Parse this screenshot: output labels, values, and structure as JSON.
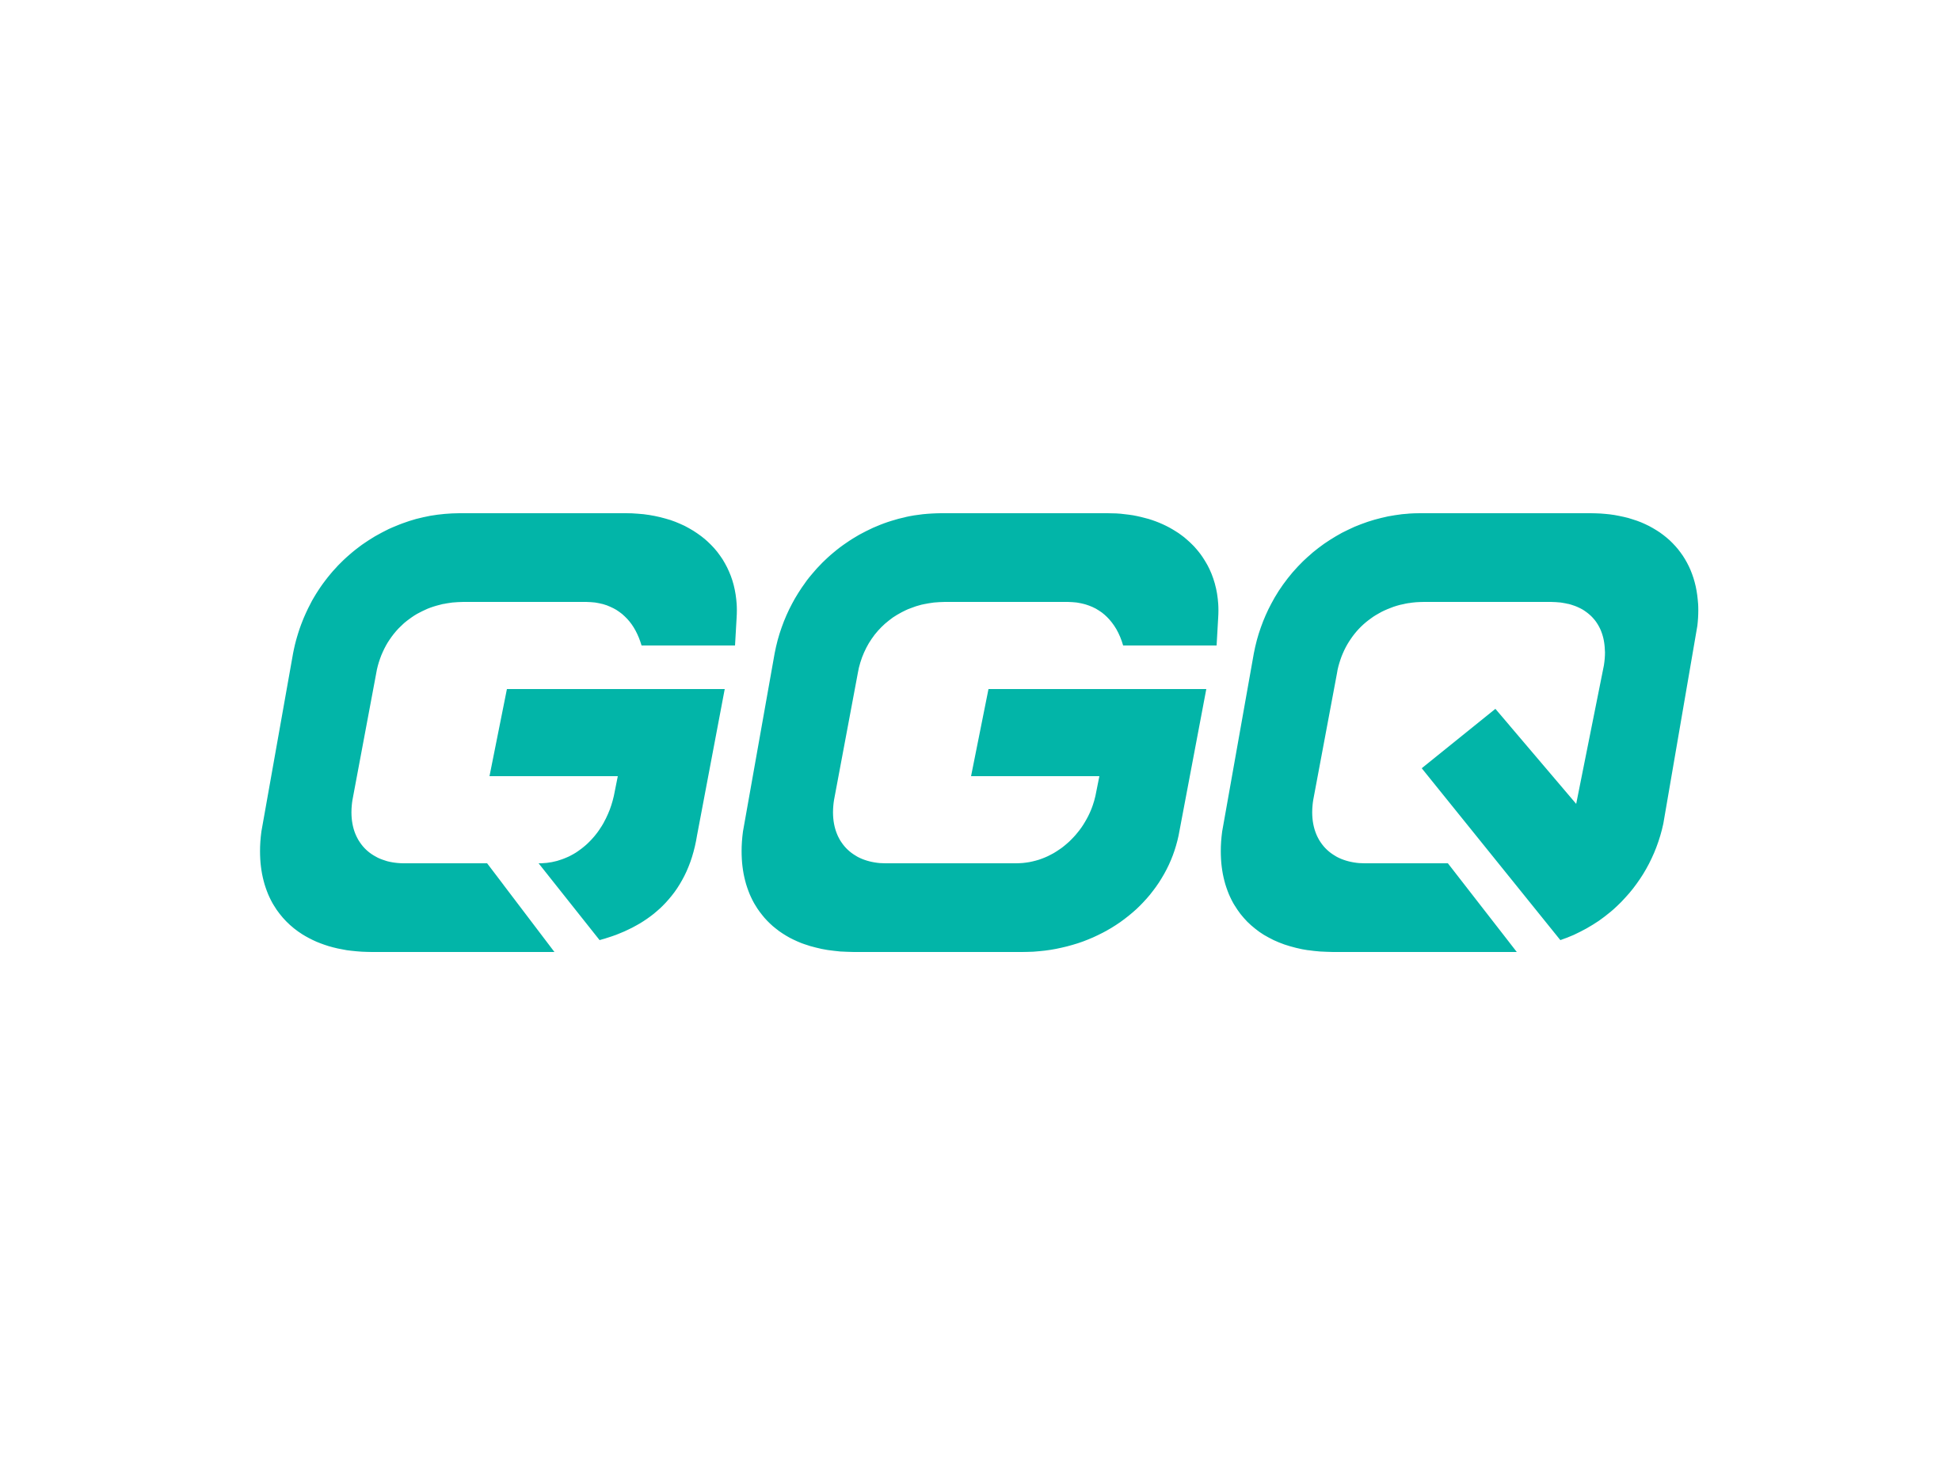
{
  "logo": {
    "text": "GGQ",
    "letters": [
      "G",
      "G",
      "Q"
    ],
    "color": "#02B5A8",
    "background": "#FFFFFF"
  }
}
